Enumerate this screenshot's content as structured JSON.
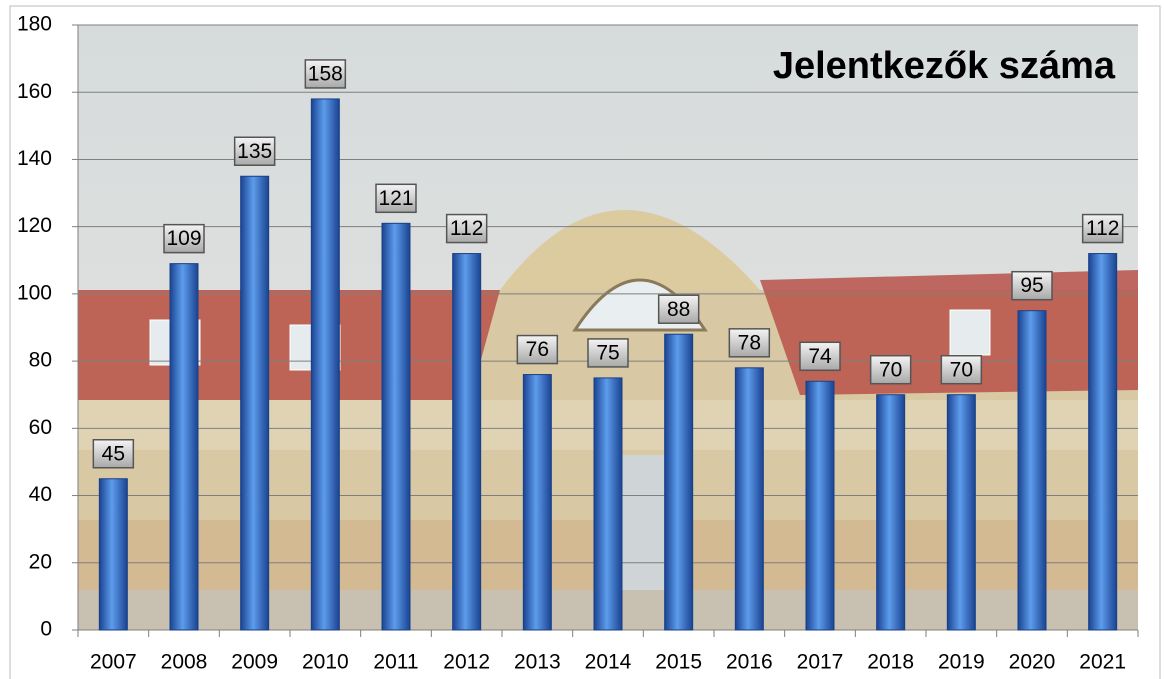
{
  "chart_data": {
    "type": "bar",
    "title": "Jelentkezők száma",
    "categories": [
      "2007",
      "2008",
      "2009",
      "2010",
      "2011",
      "2012",
      "2013",
      "2014",
      "2015",
      "2016",
      "2017",
      "2018",
      "2019",
      "2020",
      "2021"
    ],
    "values": [
      45,
      109,
      135,
      158,
      121,
      112,
      76,
      75,
      88,
      78,
      74,
      70,
      70,
      95,
      112
    ],
    "color": "#2f6fd0",
    "ylim": [
      0,
      180
    ],
    "yticks": [
      0,
      20,
      40,
      60,
      80,
      100,
      120,
      140,
      160,
      180
    ],
    "grid": true
  }
}
